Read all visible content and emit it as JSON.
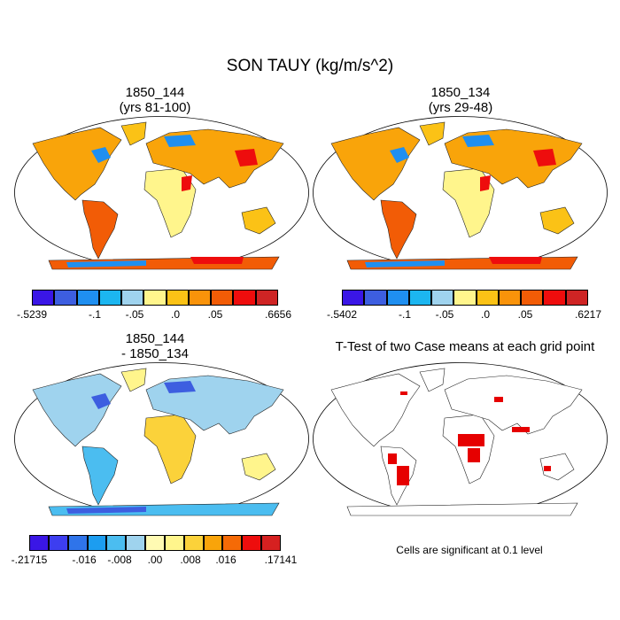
{
  "figure": {
    "title": "SON TAUY (kg/m/s^2)"
  },
  "panels": [
    {
      "id": "case1",
      "title_line1": "1850_144",
      "title_line2": "(yrs 81-100)",
      "colorbar": {
        "labels": [
          "-.5239",
          "-.1",
          "-.05",
          ".0",
          ".05",
          ".6656"
        ],
        "colors": [
          "#3a16e6",
          "#3d5ee0",
          "#1f8ff0",
          "#1cb6f0",
          "#9fd3ee",
          "#fff58c",
          "#fbc216",
          "#f9930a",
          "#f25c06",
          "#ee0d0d",
          "#cf2424"
        ]
      }
    },
    {
      "id": "case2",
      "title_line1": "1850_134",
      "title_line2": "(yrs 29-48)",
      "colorbar": {
        "labels": [
          "-.5402",
          "-.1",
          "-.05",
          ".0",
          ".05",
          ".6217"
        ],
        "colors": [
          "#3a16e6",
          "#3d5ee0",
          "#1f8ff0",
          "#1cb6f0",
          "#9fd3ee",
          "#fff58c",
          "#fbc216",
          "#f9930a",
          "#f25c06",
          "#ee0d0d",
          "#cf2424"
        ]
      }
    },
    {
      "id": "diff",
      "title_line1": "1850_144",
      "title_line2": "- 1850_134",
      "colorbar": {
        "labels": [
          "-.21715",
          "-.016",
          "-.008",
          ".00",
          ".008",
          ".016",
          ".17141"
        ],
        "colors": [
          "#3a16e6",
          "#3d3ef0",
          "#2f74ea",
          "#1c9df0",
          "#4bbdf0",
          "#9fd3ee",
          "#fffab3",
          "#fff58c",
          "#fbd23a",
          "#f9a40a",
          "#f56a06",
          "#ee0d0d",
          "#d62020"
        ]
      }
    },
    {
      "id": "ttest",
      "title_line1": "T-Test of two Case means at each grid point",
      "note": "Cells are significant at 0.1 level",
      "significance_color": "#e60000"
    }
  ]
}
